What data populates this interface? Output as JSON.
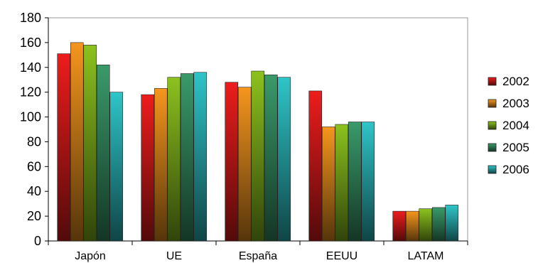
{
  "chart_data": {
    "type": "bar",
    "categories": [
      "Japón",
      "UE",
      "España",
      "EEUU",
      "LATAM"
    ],
    "series": [
      {
        "name": "2002",
        "values": [
          151,
          118,
          128,
          121,
          24
        ],
        "color": "#ee1c1c"
      },
      {
        "name": "2003",
        "values": [
          160,
          123,
          124,
          92,
          24
        ],
        "color": "#f5961e"
      },
      {
        "name": "2004",
        "values": [
          158,
          132,
          137,
          94,
          26
        ],
        "color": "#8cc21e"
      },
      {
        "name": "2005",
        "values": [
          142,
          135,
          134,
          96,
          27
        ],
        "color": "#3a9a6a"
      },
      {
        "name": "2006",
        "values": [
          120,
          136,
          132,
          96,
          29
        ],
        "color": "#2ec5c8"
      }
    ],
    "title": "",
    "xlabel": "",
    "ylabel": "",
    "ylim": [
      0,
      180
    ],
    "yticks": [
      0,
      20,
      40,
      60,
      80,
      100,
      120,
      140,
      160,
      180
    ],
    "grid": false,
    "legend": "right"
  }
}
